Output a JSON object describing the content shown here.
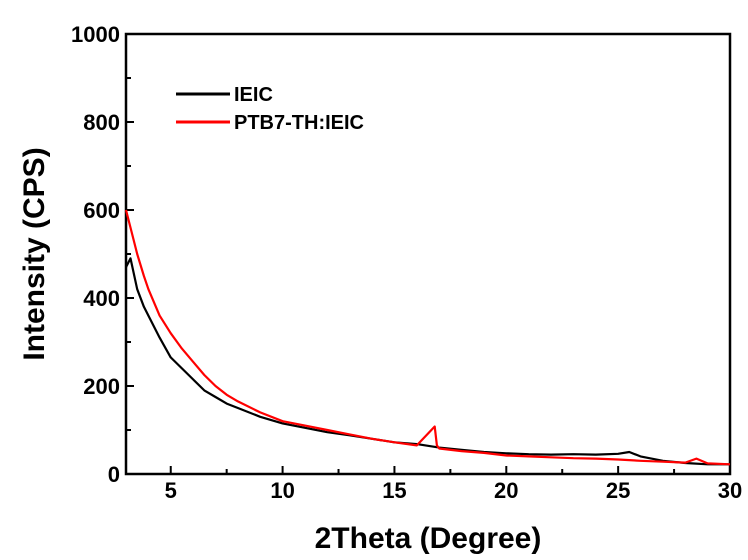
{
  "chart_data": {
    "type": "line",
    "title": "",
    "xlabel": "2Theta (Degree)",
    "ylabel": "Intensity (CPS)",
    "xlim": [
      3,
      30
    ],
    "ylim": [
      0,
      1000
    ],
    "x_ticks": [
      5,
      10,
      15,
      20,
      25,
      30
    ],
    "y_ticks": [
      0,
      200,
      400,
      600,
      800,
      1000
    ],
    "x_tick_labels": [
      "5",
      "10",
      "15",
      "20",
      "25",
      "30"
    ],
    "y_tick_labels": [
      "0",
      "200",
      "400",
      "600",
      "800",
      "1000"
    ],
    "grid": false,
    "legend_position": "top-left",
    "series": [
      {
        "name": "IEIC",
        "color": "#000000",
        "x": [
          3,
          3.2,
          3.5,
          3.8,
          4,
          4.5,
          5,
          5.5,
          6,
          6.5,
          7,
          7.5,
          8,
          9,
          10,
          11,
          12,
          13,
          14,
          15,
          16,
          17,
          18,
          19,
          20,
          21,
          22,
          23,
          24,
          25,
          25.5,
          26,
          27,
          28,
          29,
          30
        ],
        "y": [
          470,
          490,
          420,
          380,
          360,
          310,
          265,
          240,
          215,
          190,
          175,
          160,
          150,
          130,
          115,
          105,
          95,
          88,
          80,
          72,
          68,
          60,
          55,
          50,
          47,
          45,
          44,
          45,
          44,
          46,
          50,
          40,
          30,
          25,
          22,
          22
        ]
      },
      {
        "name": "PTB7-TH:IEIC",
        "color": "#ff0000",
        "x": [
          3,
          3.2,
          3.5,
          3.8,
          4,
          4.5,
          5,
          5.5,
          6,
          6.5,
          7,
          7.5,
          8,
          9,
          10,
          11,
          12,
          13,
          14,
          15,
          16,
          16.8,
          16.9,
          17,
          18,
          19,
          20,
          21,
          22,
          23,
          24,
          25,
          26,
          27,
          28,
          28.5,
          29,
          30
        ],
        "y": [
          600,
          560,
          500,
          450,
          420,
          360,
          320,
          285,
          255,
          225,
          200,
          180,
          165,
          140,
          120,
          110,
          100,
          90,
          80,
          72,
          65,
          108,
          65,
          58,
          52,
          48,
          42,
          40,
          38,
          36,
          35,
          33,
          30,
          28,
          26,
          35,
          24,
          22
        ]
      }
    ]
  }
}
